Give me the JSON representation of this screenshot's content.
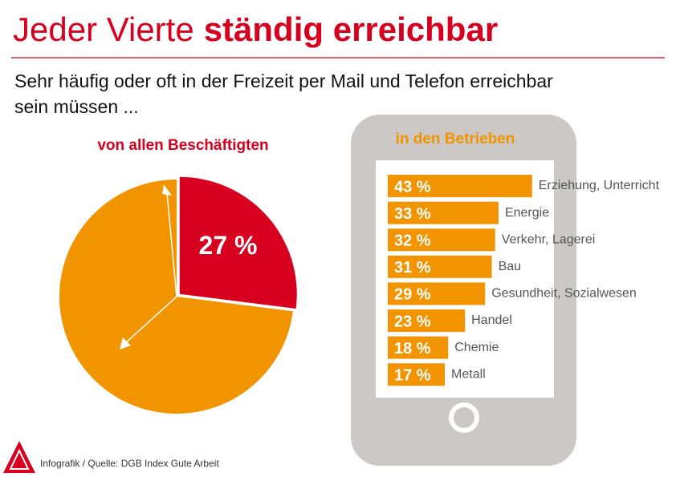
{
  "header": {
    "title": [
      "Jeder Vierte",
      "ständig erreichbar"
    ],
    "subtitle": [
      "Sehr häufig oder oft in der Freizeit per Mail und Telefon erreichbar",
      "sein  müssen ..."
    ]
  },
  "chart_data": [
    {
      "type": "pie",
      "title": "von allen Beschäftigten",
      "categories": [
        null,
        null
      ],
      "values": [
        27,
        73
      ],
      "value_labels": [
        "27 %",
        null
      ],
      "colors": [
        "#d7001e",
        "#f29400"
      ]
    },
    {
      "type": "bar",
      "title": "in den Betrieben",
      "categories": [
        "Erziehung, Unterricht",
        "Energie",
        "Verkehr, Lagerei",
        "Bau",
        "Gesundheit, Sozialwesen",
        "Handel",
        "Chemie",
        "Metall"
      ],
      "values": [
        43,
        33,
        32,
        31,
        29,
        23,
        18,
        17
      ],
      "value_labels": [
        "43 %",
        "33 %",
        "32 %",
        "31 %",
        "29 %",
        "23 %",
        "18 %",
        "17 %"
      ],
      "color": "#f29400"
    }
  ],
  "footer": {
    "source": "Infografik / Quelle: DGB Index Gute Arbeit"
  }
}
